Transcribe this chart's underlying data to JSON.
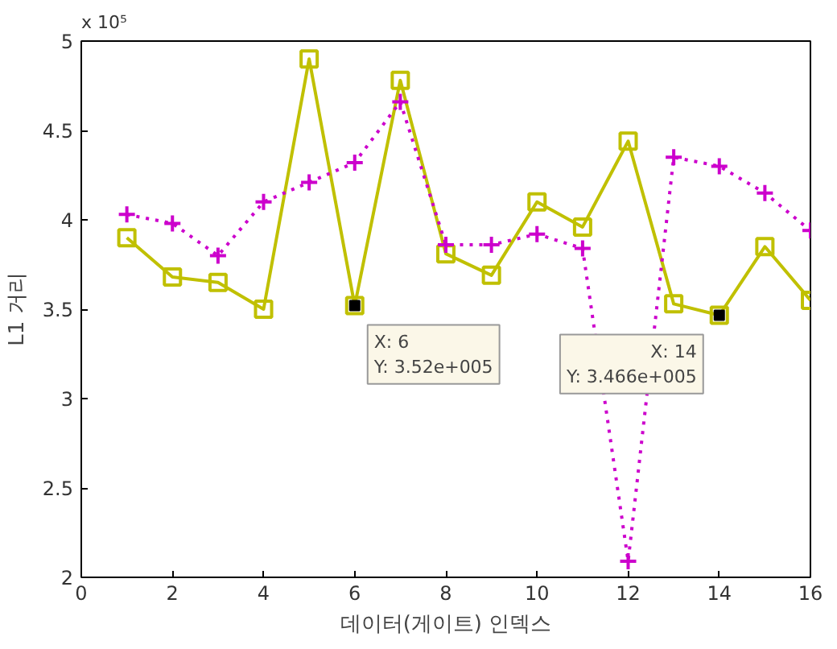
{
  "chart_data": {
    "type": "line",
    "xlabel": "데이터(게이트) 인덱스",
    "ylabel": "L1 거리",
    "x": [
      1,
      2,
      3,
      4,
      5,
      6,
      7,
      8,
      9,
      10,
      11,
      12,
      13,
      14,
      15,
      16
    ],
    "series": [
      {
        "color": "#c0c000",
        "marker": "square",
        "line_style": "solid",
        "values": [
          3.9,
          3.68,
          3.65,
          3.5,
          4.9,
          3.52,
          4.78,
          3.81,
          3.69,
          4.1,
          3.96,
          4.44,
          3.53,
          3.466,
          3.85,
          3.55
        ]
      },
      {
        "color": "#cc00cc",
        "marker": "cross",
        "line_style": "dotted",
        "values": [
          4.03,
          3.98,
          3.8,
          4.1,
          4.21,
          4.32,
          4.66,
          3.86,
          3.86,
          3.92,
          3.84,
          2.09,
          4.35,
          4.3,
          4.15,
          3.94
        ]
      }
    ],
    "xlim": [
      0,
      16
    ],
    "xticks": [
      0,
      2,
      4,
      6,
      8,
      10,
      12,
      14,
      16
    ],
    "ylim": [
      2,
      5
    ],
    "yticks": [
      2,
      2.5,
      3,
      3.5,
      4,
      4.5,
      5
    ],
    "grid": false,
    "annotations": [
      "x 10⁵",
      {
        "text": "X: 6\nY: 3.52e+005",
        "x": 6,
        "y": 3.52
      },
      {
        "text": "X: 14\nY: 3.466e+005",
        "x": 14,
        "y": 3.466
      }
    ]
  }
}
